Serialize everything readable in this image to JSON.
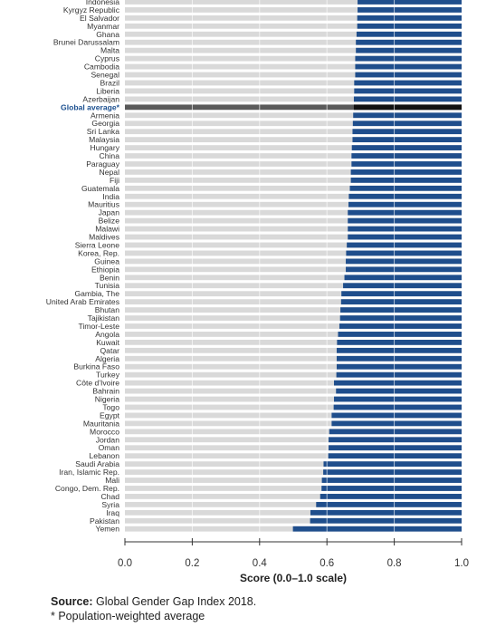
{
  "chart_data": {
    "type": "bar",
    "orientation": "horizontal",
    "xlabel": "Score (0.0–1.0 scale)",
    "xlim": [
      0.0,
      1.0
    ],
    "xticks": [
      "0.0",
      "0.2",
      "0.4",
      "0.6",
      "0.8",
      "1.0"
    ],
    "grid": true,
    "highlight_category": "Global average*",
    "colors": {
      "bar": "#1f4e8c",
      "highlight_bar": "#111111",
      "track": "#d9d9d9",
      "highlight_track": "#5a5a5a",
      "label_highlight": "#1b4f8f"
    },
    "categories": [
      "Indonesia",
      "Kyrgyz Republic",
      "El Salvador",
      "Myanmar",
      "Ghana",
      "Brunei Darussalam",
      "Malta",
      "Cyprus",
      "Cambodia",
      "Senegal",
      "Brazil",
      "Liberia",
      "Azerbaijan",
      "Global average*",
      "Armenia",
      "Georgia",
      "Sri Lanka",
      "Malaysia",
      "Hungary",
      "China",
      "Paraguay",
      "Nepal",
      "Fiji",
      "Guatemala",
      "India",
      "Mauritius",
      "Japan",
      "Belize",
      "Malawi",
      "Maldives",
      "Sierra Leone",
      "Korea, Rep.",
      "Guinea",
      "Ethiopia",
      "Benin",
      "Tunisia",
      "Gambia, The",
      "United Arab Emirates",
      "Bhutan",
      "Tajikistan",
      "Timor-Leste",
      "Angola",
      "Kuwait",
      "Qatar",
      "Algeria",
      "Burkina Faso",
      "Turkey",
      "Côte d'Ivoire",
      "Bahrain",
      "Nigeria",
      "Togo",
      "Egypt",
      "Mauritania",
      "Morocco",
      "Jordan",
      "Oman",
      "Lebanon",
      "Saudi Arabia",
      "Iran, Islamic Rep.",
      "Mali",
      "Congo, Dem. Rep.",
      "Chad",
      "Syria",
      "Iraq",
      "Pakistan",
      "Yemen"
    ],
    "values": [
      0.691,
      0.691,
      0.69,
      0.69,
      0.688,
      0.686,
      0.686,
      0.684,
      0.684,
      0.684,
      0.681,
      0.681,
      0.68,
      0.68,
      0.678,
      0.677,
      0.676,
      0.676,
      0.674,
      0.673,
      0.673,
      0.671,
      0.671,
      0.668,
      0.665,
      0.664,
      0.662,
      0.662,
      0.662,
      0.662,
      0.659,
      0.657,
      0.656,
      0.656,
      0.652,
      0.648,
      0.643,
      0.642,
      0.64,
      0.639,
      0.637,
      0.633,
      0.63,
      0.629,
      0.629,
      0.629,
      0.628,
      0.621,
      0.627,
      0.621,
      0.62,
      0.614,
      0.614,
      0.607,
      0.605,
      0.605,
      0.604,
      0.59,
      0.589,
      0.585,
      0.584,
      0.58,
      0.568,
      0.551,
      0.55,
      0.499
    ],
    "note": "* Population-weighted average",
    "source_label": "Source:",
    "source_text": "Global Gender Gap Index 2018."
  }
}
